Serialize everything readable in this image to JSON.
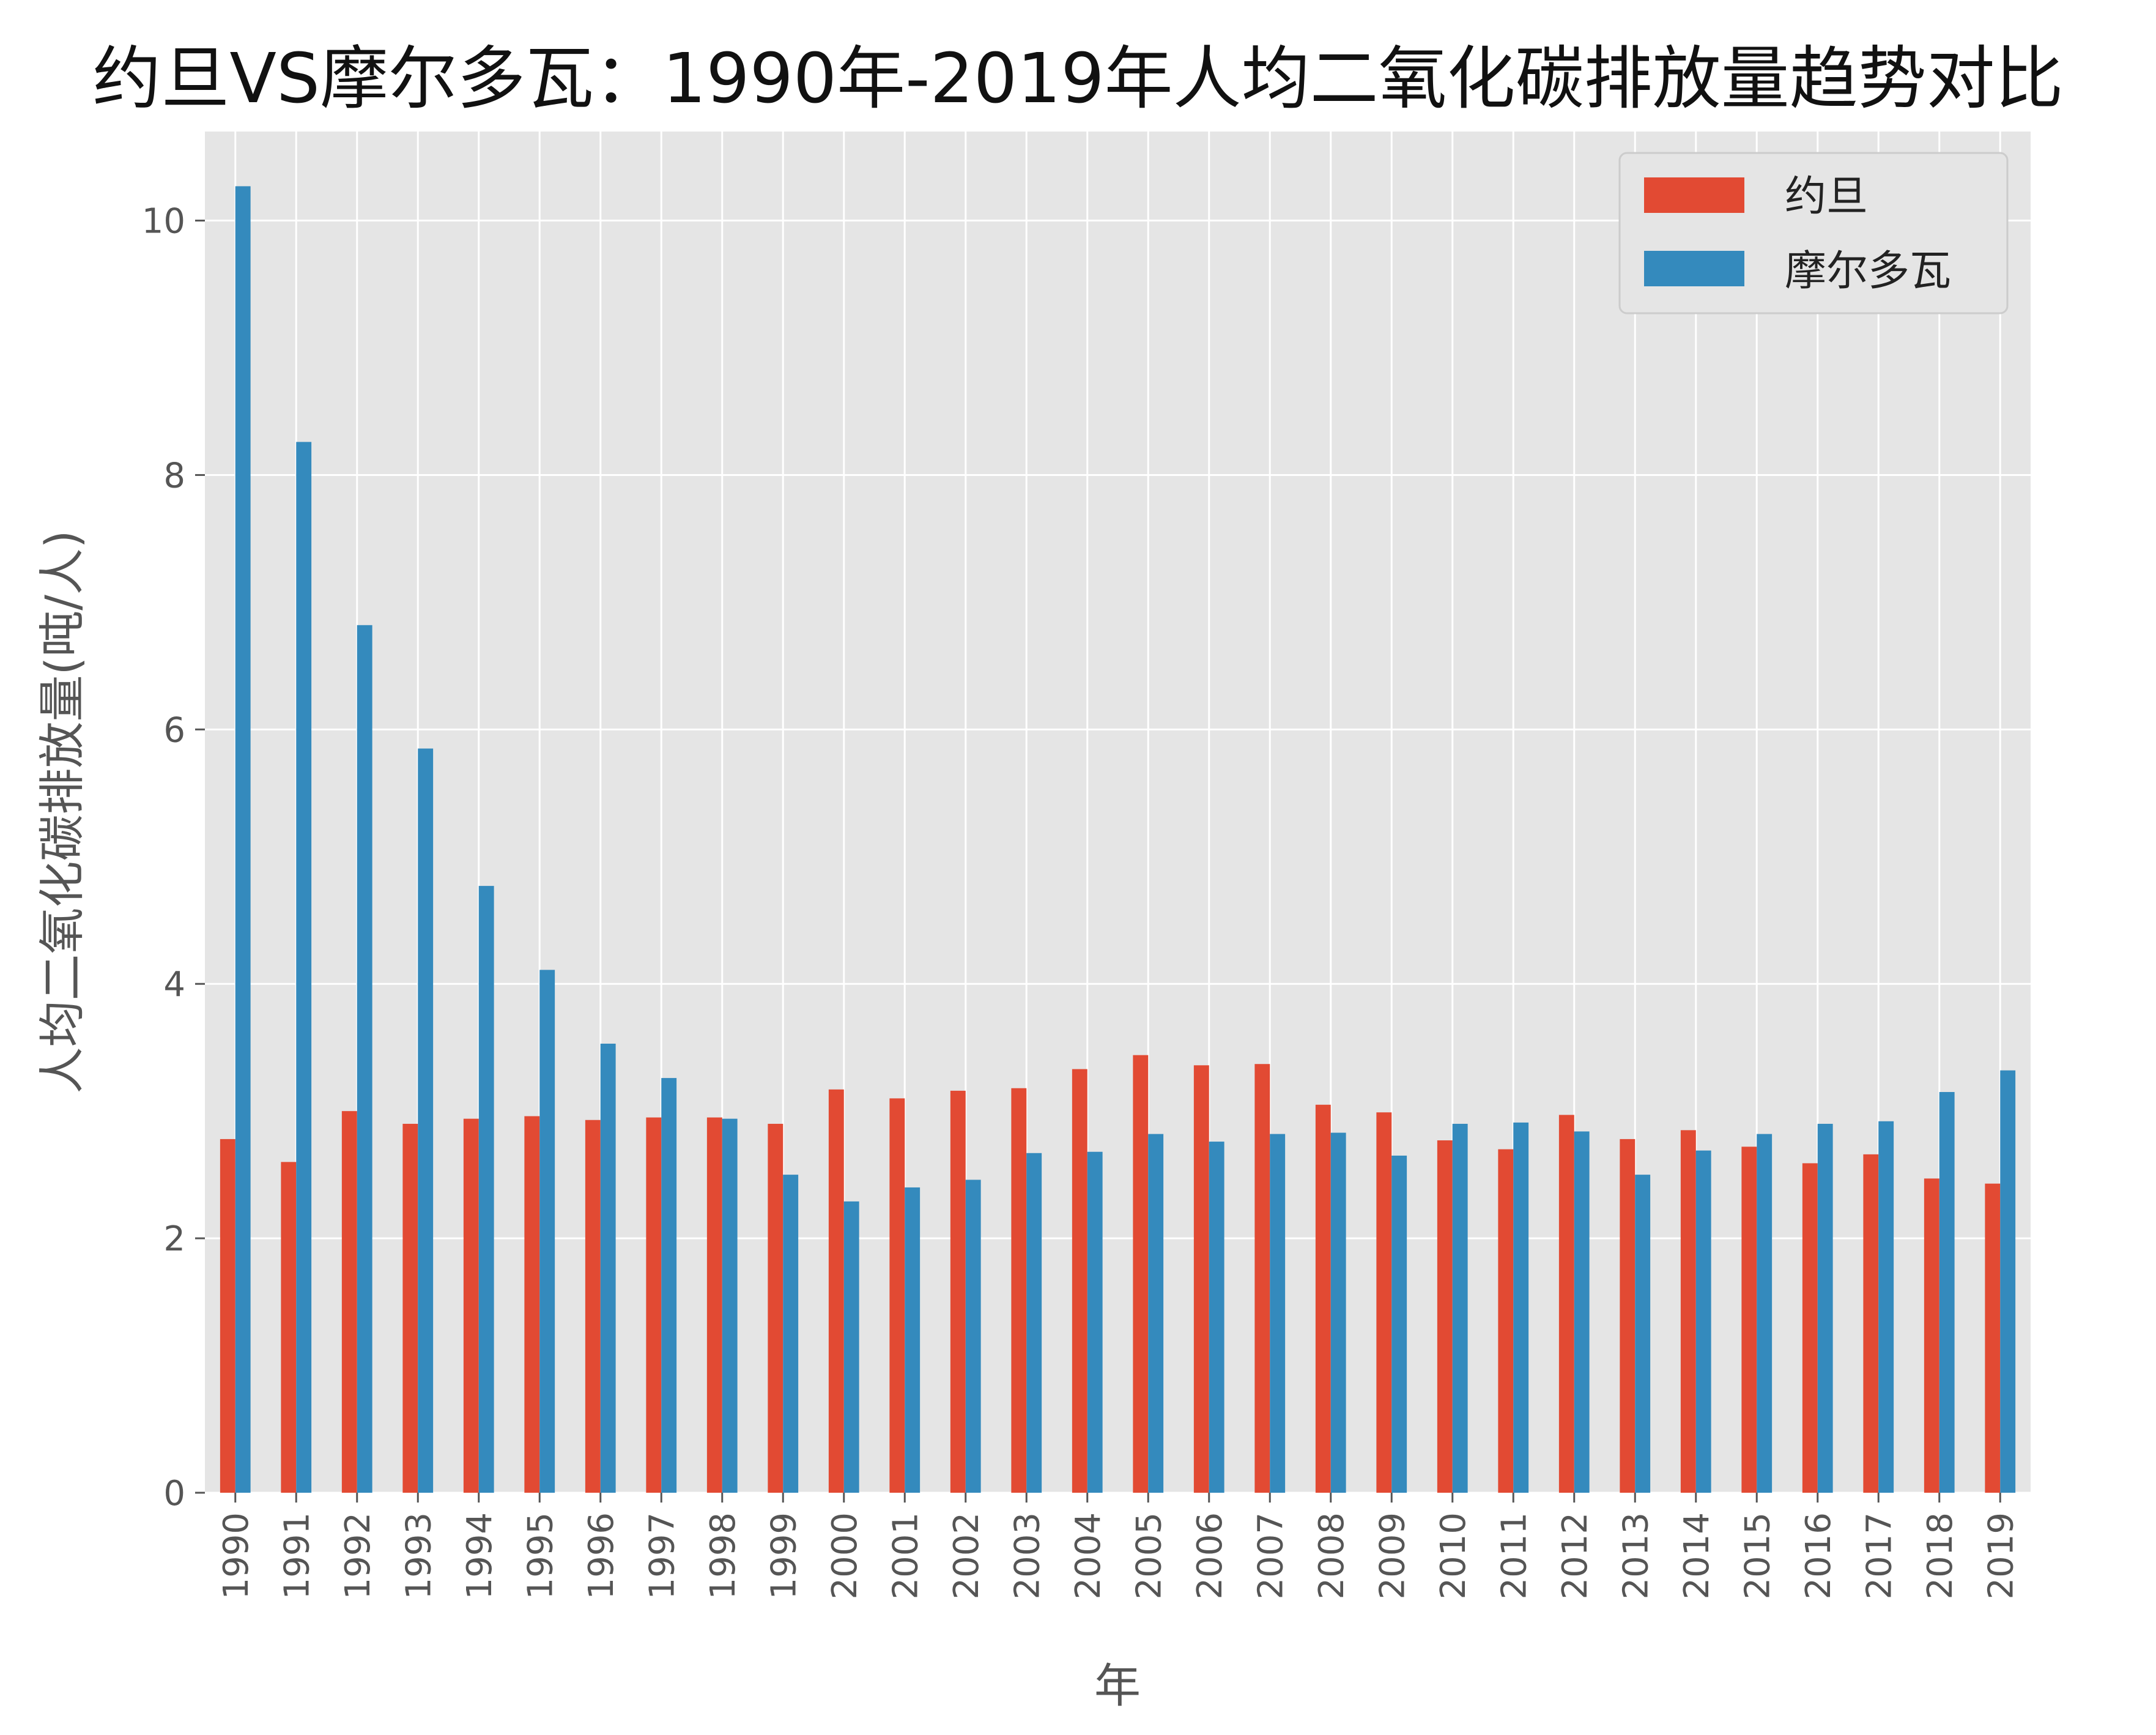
{
  "chart_data": {
    "type": "bar",
    "title": "约旦VS摩尔多瓦：1990年-2019年人均二氧化碳排放量趋势对比",
    "xlabel": "年",
    "ylabel": "人均二氧化碳排放量(吨/人)",
    "ylim": [
      0,
      10.7
    ],
    "yticks": [
      0,
      2,
      4,
      6,
      8,
      10
    ],
    "grid": true,
    "legend_position": "top-right",
    "categories": [
      "1990",
      "1991",
      "1992",
      "1993",
      "1994",
      "1995",
      "1996",
      "1997",
      "1998",
      "1999",
      "2000",
      "2001",
      "2002",
      "2003",
      "2004",
      "2005",
      "2006",
      "2007",
      "2008",
      "2009",
      "2010",
      "2011",
      "2012",
      "2013",
      "2014",
      "2015",
      "2016",
      "2017",
      "2018",
      "2019"
    ],
    "series": [
      {
        "name": "约旦",
        "color": "#E24A33",
        "values": [
          2.78,
          2.6,
          3.0,
          2.9,
          2.94,
          2.96,
          2.93,
          2.95,
          2.95,
          2.9,
          3.17,
          3.1,
          3.16,
          3.18,
          3.33,
          3.44,
          3.36,
          3.37,
          3.05,
          2.99,
          2.77,
          2.7,
          2.97,
          2.78,
          2.85,
          2.72,
          2.59,
          2.66,
          2.47,
          2.43
        ]
      },
      {
        "name": "摩尔多瓦",
        "color": "#348ABD",
        "values": [
          10.27,
          8.26,
          6.82,
          5.85,
          4.77,
          4.11,
          3.53,
          3.26,
          2.94,
          2.5,
          2.29,
          2.4,
          2.46,
          2.67,
          2.68,
          2.82,
          2.76,
          2.82,
          2.83,
          2.65,
          2.9,
          2.91,
          2.84,
          2.5,
          2.69,
          2.82,
          2.9,
          2.92,
          3.15,
          3.32
        ]
      }
    ]
  },
  "colors": {
    "plot_background": "#E5E5E5",
    "grid": "#FFFFFF",
    "text": "#555555"
  }
}
